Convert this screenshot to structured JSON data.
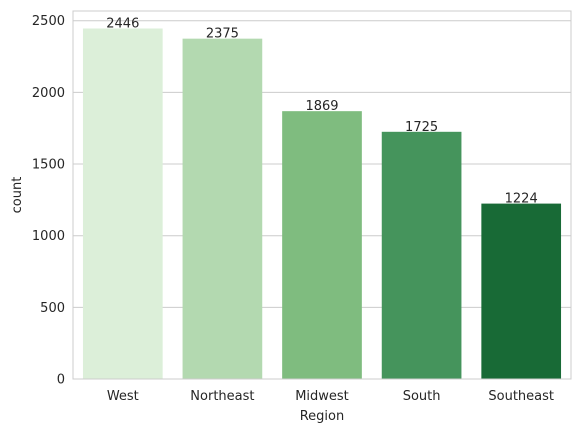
{
  "chart_data": {
    "type": "bar",
    "title": "",
    "xlabel": "Region",
    "ylabel": "count",
    "categories": [
      "West",
      "Northeast",
      "Midwest",
      "South",
      "Southeast"
    ],
    "values": [
      2446,
      2375,
      1869,
      1725,
      1224
    ],
    "data_labels": [
      "2446",
      "2375",
      "1869",
      "1725",
      "1224"
    ],
    "ylim": [
      0,
      2568
    ],
    "yticks": [
      0,
      500,
      1000,
      1500,
      2000,
      2500
    ],
    "ytick_labels": [
      "0",
      "500",
      "1000",
      "1500",
      "2000",
      "2500"
    ],
    "colors": [
      "#dcefd9",
      "#b3d9b0",
      "#7fbc7f",
      "#45945c",
      "#186a36"
    ],
    "grid": "y",
    "legend": "none"
  }
}
